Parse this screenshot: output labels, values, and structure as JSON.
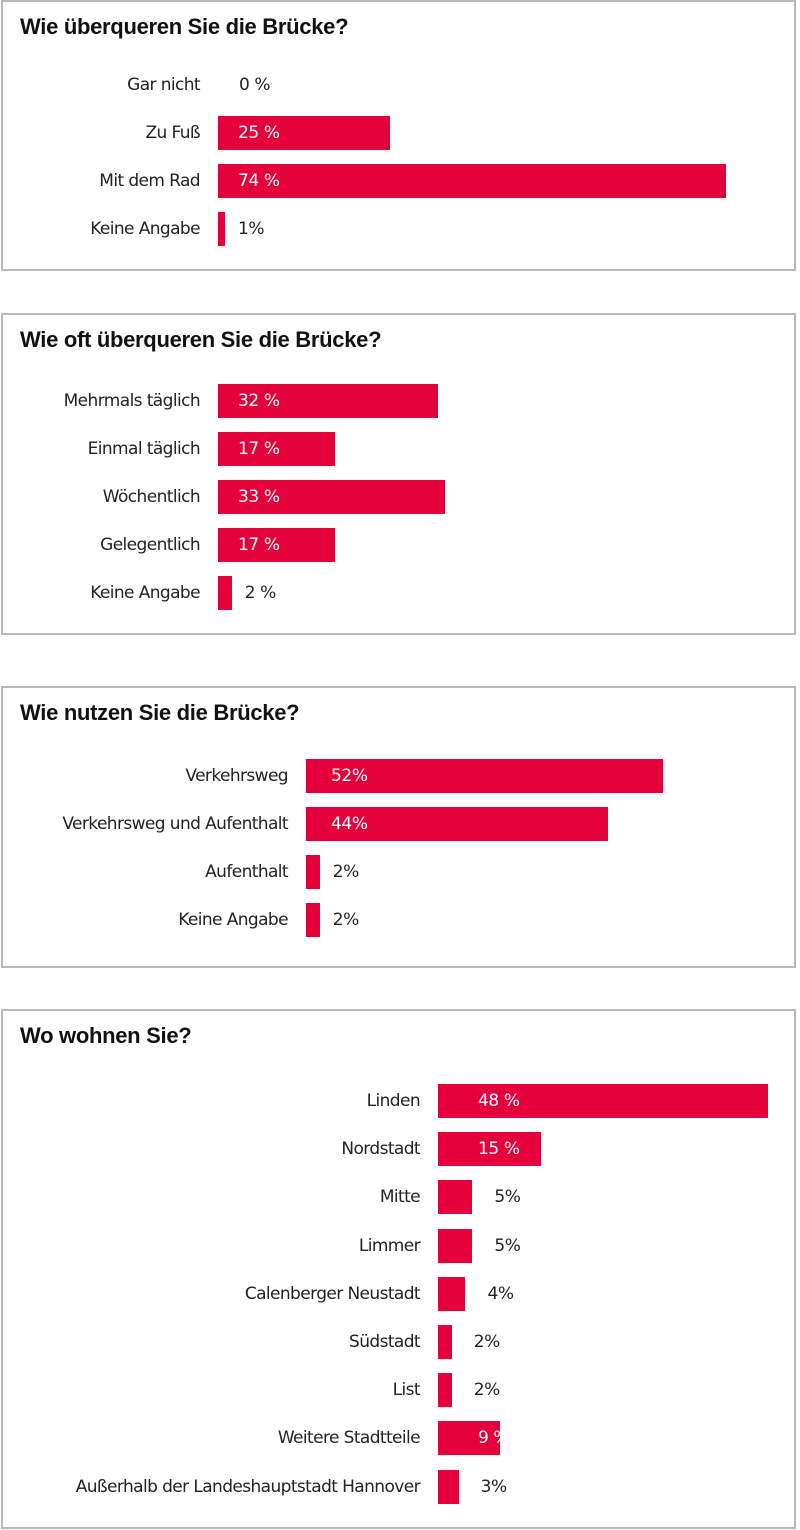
{
  "colors": {
    "bar": "#e4003a",
    "border": "#b8b8b8",
    "text": "#222222",
    "inside_text": "#ffffff"
  },
  "chart_data": [
    {
      "type": "bar",
      "orientation": "horizontal",
      "title": "Wie überqueren Sie die Brücke?",
      "categories": [
        "Gar nicht",
        "Zu Fuß",
        "Mit dem Rad",
        "Keine Angabe"
      ],
      "values": [
        0,
        25,
        74,
        1
      ],
      "value_labels": [
        "0 %",
        "25 %",
        "74 %",
        "1%"
      ],
      "unit": "%",
      "xlim": [
        0,
        100
      ]
    },
    {
      "type": "bar",
      "orientation": "horizontal",
      "title": "Wie oft überqueren Sie die Brücke?",
      "categories": [
        "Mehrmals täglich",
        "Einmal täglich",
        "Wöchentlich",
        "Gelegentlich",
        "Keine Angabe"
      ],
      "values": [
        32,
        17,
        33,
        17,
        2
      ],
      "value_labels": [
        "32 %",
        "17 %",
        "33 %",
        "17 %",
        "2 %"
      ],
      "unit": "%",
      "xlim": [
        0,
        100
      ]
    },
    {
      "type": "bar",
      "orientation": "horizontal",
      "title": "Wie nutzen Sie die Brücke?",
      "categories": [
        "Verkehrsweg",
        "Verkehrsweg und Aufenthalt",
        "Aufenthalt",
        "Keine Angabe"
      ],
      "values": [
        52,
        44,
        2,
        2
      ],
      "value_labels": [
        "52%",
        "44%",
        "2%",
        "2%"
      ],
      "unit": "%",
      "xlim": [
        0,
        100
      ]
    },
    {
      "type": "bar",
      "orientation": "horizontal",
      "title": "Wo wohnen Sie?",
      "categories": [
        "Linden",
        "Nordstadt",
        "Mitte",
        "Limmer",
        "Calenberger Neustadt",
        "Südstadt",
        "List",
        "Weitere Stadtteile",
        "Außerhalb der Landeshauptstadt Hannover"
      ],
      "values": [
        48,
        15,
        5,
        5,
        4,
        2,
        2,
        9,
        3
      ],
      "value_labels": [
        "48 %",
        "15 %",
        "5%",
        "5%",
        "4%",
        "2%",
        "2%",
        "9 %",
        "3%"
      ],
      "unit": "%",
      "xlim": [
        0,
        100
      ]
    }
  ]
}
